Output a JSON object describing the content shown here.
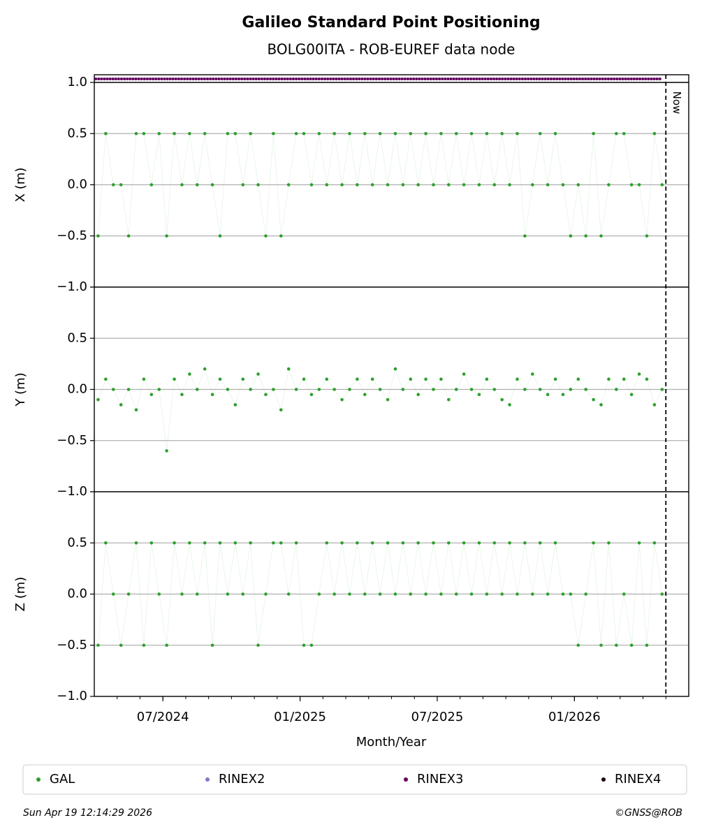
{
  "chart_data": {
    "type": "scatter",
    "title": "Galileo Standard Point Positioning",
    "subtitle": "BOLG00ITA - ROB-EUREF data node",
    "xlabel": "Month/Year",
    "x": [
      "2024-04",
      "2024-04",
      "2024-04",
      "2024-05",
      "2024-05",
      "2024-05",
      "2024-06",
      "2024-06",
      "2024-06",
      "2024-07",
      "2024-07",
      "2024-07",
      "2024-08",
      "2024-08",
      "2024-08",
      "2024-09",
      "2024-09",
      "2024-09",
      "2024-10",
      "2024-10",
      "2024-10",
      "2024-11",
      "2024-11",
      "2024-11",
      "2024-12",
      "2024-12",
      "2024-12",
      "2025-01",
      "2025-01",
      "2025-01",
      "2025-02",
      "2025-02",
      "2025-02",
      "2025-03",
      "2025-03",
      "2025-03",
      "2025-04",
      "2025-04",
      "2025-04",
      "2025-05",
      "2025-05",
      "2025-05",
      "2025-06",
      "2025-06",
      "2025-06",
      "2025-07",
      "2025-07",
      "2025-07",
      "2025-08",
      "2025-08",
      "2025-08",
      "2025-09",
      "2025-09",
      "2025-09",
      "2025-10",
      "2025-10",
      "2025-10",
      "2025-11",
      "2025-11",
      "2025-11",
      "2025-12",
      "2025-12",
      "2025-12",
      "2026-01",
      "2026-01",
      "2026-01",
      "2026-02",
      "2026-02",
      "2026-02",
      "2026-03",
      "2026-03",
      "2026-03",
      "2026-04",
      "2026-04",
      "2026-04"
    ],
    "xlim": [
      "2024-04",
      "2026-06"
    ],
    "xticks": [
      {
        "value": "2024-07",
        "label": "07/2024"
      },
      {
        "value": "2025-01",
        "label": "01/2025"
      },
      {
        "value": "2025-07",
        "label": "07/2025"
      },
      {
        "value": "2026-01",
        "label": "01/2026"
      }
    ],
    "ylim": [
      -1,
      1
    ],
    "yticks": [
      {
        "value": -1,
        "label": "−1.0"
      },
      {
        "value": -0.5,
        "label": "−0.5"
      },
      {
        "value": 0,
        "label": "0.0"
      },
      {
        "value": 0.5,
        "label": "0.5"
      },
      {
        "value": 1,
        "label": "1.0"
      }
    ],
    "grid": true,
    "now": {
      "x": "2026-05",
      "label": "Now"
    },
    "panels": [
      {
        "ylabel": "X (m)",
        "values": [
          -0.5,
          0.5,
          0,
          0,
          -0.5,
          0.5,
          0.5,
          0,
          0.5,
          -0.5,
          0.5,
          0,
          0.5,
          0,
          0.5,
          0,
          -0.5,
          0.5,
          0.5,
          0,
          0.5,
          0,
          -0.5,
          0.5,
          -0.5,
          0,
          0.5,
          0.5,
          0,
          0.5,
          0,
          0.5,
          0,
          0.5,
          0,
          0.5,
          0,
          0.5,
          0,
          0.5,
          0,
          0.5,
          0,
          0.5,
          0,
          0.5,
          0,
          0.5,
          0,
          0.5,
          0,
          0.5,
          0,
          0.5,
          0,
          0.5,
          -0.5,
          0,
          0.5,
          0,
          0.5,
          0,
          -0.5,
          0,
          -0.5,
          0.5,
          -0.5,
          0,
          0.5,
          0.5,
          0,
          0,
          -0.5,
          0.5,
          0
        ]
      },
      {
        "ylabel": "Y (m)",
        "values": [
          -0.1,
          0.1,
          0,
          -0.15,
          0,
          -0.2,
          0.1,
          -0.05,
          0,
          -0.6,
          0.1,
          -0.05,
          0.15,
          0,
          0.2,
          -0.05,
          0.1,
          0,
          -0.15,
          0.1,
          0,
          0.15,
          -0.05,
          0,
          -0.2,
          0.2,
          0,
          0.1,
          -0.05,
          0,
          0.1,
          0,
          -0.1,
          0,
          0.1,
          -0.05,
          0.1,
          0,
          -0.1,
          0.2,
          0,
          0.1,
          -0.05,
          0.1,
          0,
          0.1,
          -0.1,
          0,
          0.15,
          0,
          -0.05,
          0.1,
          0,
          -0.1,
          -0.15,
          0.1,
          0,
          0.15,
          0,
          -0.05,
          0.1,
          -0.05,
          0,
          0.1,
          0,
          -0.1,
          -0.15,
          0.1,
          0,
          0.1,
          -0.05,
          0.15,
          0.1,
          -0.15,
          0
        ]
      },
      {
        "ylabel": "Z (m)",
        "values": [
          -0.5,
          0.5,
          0,
          -0.5,
          0,
          0.5,
          -0.5,
          0.5,
          0,
          -0.5,
          0.5,
          0,
          0.5,
          0,
          0.5,
          -0.5,
          0.5,
          0,
          0.5,
          0,
          0.5,
          -0.5,
          0,
          0.5,
          0.5,
          0,
          0.5,
          -0.5,
          -0.5,
          0,
          0.5,
          0,
          0.5,
          0,
          0.5,
          0,
          0.5,
          0,
          0.5,
          0,
          0.5,
          0,
          0.5,
          0,
          0.5,
          0,
          0.5,
          0,
          0.5,
          0,
          0.5,
          0,
          0.5,
          0,
          0.5,
          0,
          0.5,
          0,
          0.5,
          0,
          0.5,
          0,
          0,
          -0.5,
          0,
          0.5,
          -0.5,
          0.5,
          -0.5,
          0,
          -0.5,
          0.5,
          -0.5,
          0.5,
          0
        ]
      }
    ],
    "series": [
      {
        "name": "GAL",
        "color": "#2ca02c"
      },
      {
        "name": "RINEX2",
        "color": "#7b7bc4"
      },
      {
        "name": "RINEX3",
        "color": "#650060",
        "span": [
          "2024-04",
          "2026-05"
        ]
      },
      {
        "name": "RINEX4",
        "color": "#1c0014"
      }
    ],
    "timestamp": "Sun Apr 19 12:14:29 2026",
    "credit": "©GNSS@ROB"
  }
}
